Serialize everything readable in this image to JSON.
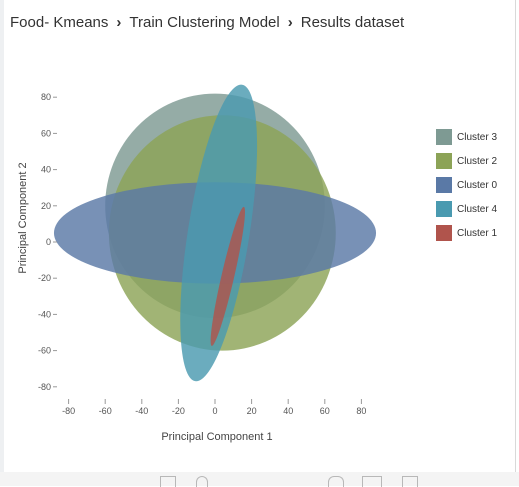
{
  "breadcrumb": {
    "items": [
      "Food- Kmeans",
      "Train Clustering Model",
      "Results dataset"
    ],
    "separator": "›"
  },
  "chart_data": {
    "type": "scatter",
    "shape": "ellipses",
    "xlabel": "Principal Component 1",
    "ylabel": "Principal Component 2",
    "xlim": [
      -90,
      90
    ],
    "ylim": [
      -90,
      90
    ],
    "xticks": [
      -80,
      -60,
      -40,
      -20,
      0,
      20,
      40,
      60,
      80
    ],
    "yticks": [
      80,
      60,
      40,
      20,
      0,
      -20,
      -40,
      -60,
      -80
    ],
    "legend_position": "right",
    "series": [
      {
        "name": "Cluster 3",
        "color": "#7e9a93",
        "center": [
          0,
          20
        ],
        "rx": 60,
        "ry": 62,
        "angle": 0
      },
      {
        "name": "Cluster 2",
        "color": "#8ca357",
        "center": [
          4,
          5
        ],
        "rx": 62,
        "ry": 65,
        "angle": 0
      },
      {
        "name": "Cluster 0",
        "color": "#5a79a6",
        "center": [
          0,
          5
        ],
        "rx": 88,
        "ry": 28,
        "angle": 0
      },
      {
        "name": "Cluster 4",
        "color": "#4a9ab0",
        "center": [
          2,
          5
        ],
        "rx": 82,
        "ry": 17,
        "angle": -81
      },
      {
        "name": "Cluster 1",
        "color": "#b0544c",
        "center": [
          7,
          -19
        ],
        "rx": 39,
        "ry": 3.5,
        "angle": -77
      }
    ]
  }
}
